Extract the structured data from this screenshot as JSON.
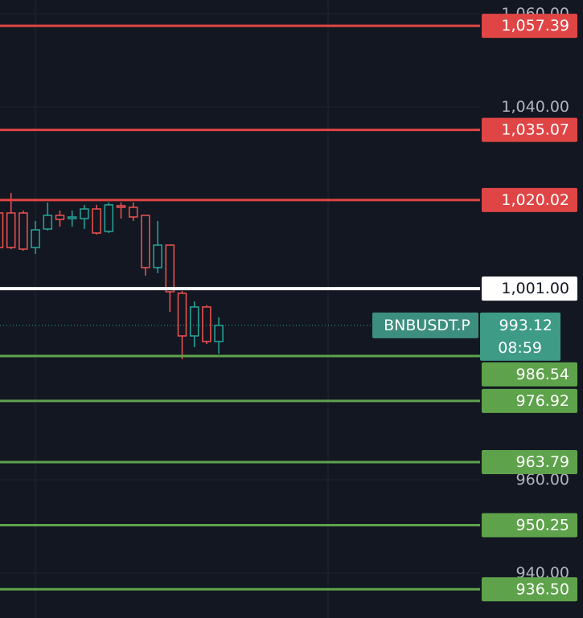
{
  "chart_data": {
    "type": "candlestick",
    "symbol": "BNBUSDT.P",
    "countdown": "08:59",
    "last_price": 993.12,
    "ylim": [
      930.34,
      1062.93
    ],
    "yticks": [
      {
        "value": 1060,
        "label": "1,060.00"
      },
      {
        "value": 1040,
        "label": "1,040.00"
      },
      {
        "value": 960,
        "label": "960.00"
      },
      {
        "value": 940,
        "label": "940.00"
      }
    ],
    "grid": true,
    "up_color": "#26a69a",
    "down_color": "#ef5350",
    "candles": {
      "open": [
        1017.24,
        1017.24,
        1017.24,
        1009.83,
        1013.79,
        1016.72,
        1016.03,
        1016.03,
        1018.1,
        1013.28,
        1018.79,
        1018.45,
        1016.72,
        1005.52,
        1010.34,
        1000.0,
        990.86,
        997.07,
        989.66
      ],
      "high": [
        1017.76,
        1021.55,
        1017.76,
        1015.52,
        1019.48,
        1017.76,
        1017.76,
        1018.97,
        1018.97,
        1019.48,
        1019.48,
        1019.48,
        1016.72,
        1015.52,
        1010.34,
        1000.52,
        998.28,
        997.41,
        994.83
      ],
      "low": [
        1009.48,
        1009.48,
        1009.14,
        1008.45,
        1013.45,
        1014.31,
        1014.31,
        1013.79,
        1012.59,
        1012.93,
        1016.03,
        1015.52,
        1003.79,
        1004.31,
        996.03,
        985.86,
        988.45,
        989.14,
        987.07
      ],
      "close": [
        1009.83,
        1009.83,
        1009.48,
        1013.62,
        1016.72,
        1015.86,
        1016.38,
        1018.1,
        1012.93,
        1018.97,
        1018.45,
        1016.38,
        1005.52,
        1010.34,
        1000.34,
        990.86,
        997.07,
        989.66,
        993.12
      ]
    },
    "levels": {
      "values": [
        1057.39,
        1035.07,
        1020.02,
        1001.0,
        986.54,
        976.92,
        963.79,
        950.25,
        936.5
      ],
      "value_labels": [
        "1,057.39",
        "1,035.07",
        "1,020.02",
        "1,001.00",
        "986.54",
        "976.92",
        "963.79",
        "950.25",
        "936.50"
      ],
      "colors": [
        "#e04545",
        "#e04545",
        "#e04545",
        "#ffffff",
        "#5ea34b",
        "#5ea34b",
        "#5ea34b",
        "#5ea34b",
        "#5ea34b"
      ]
    }
  }
}
